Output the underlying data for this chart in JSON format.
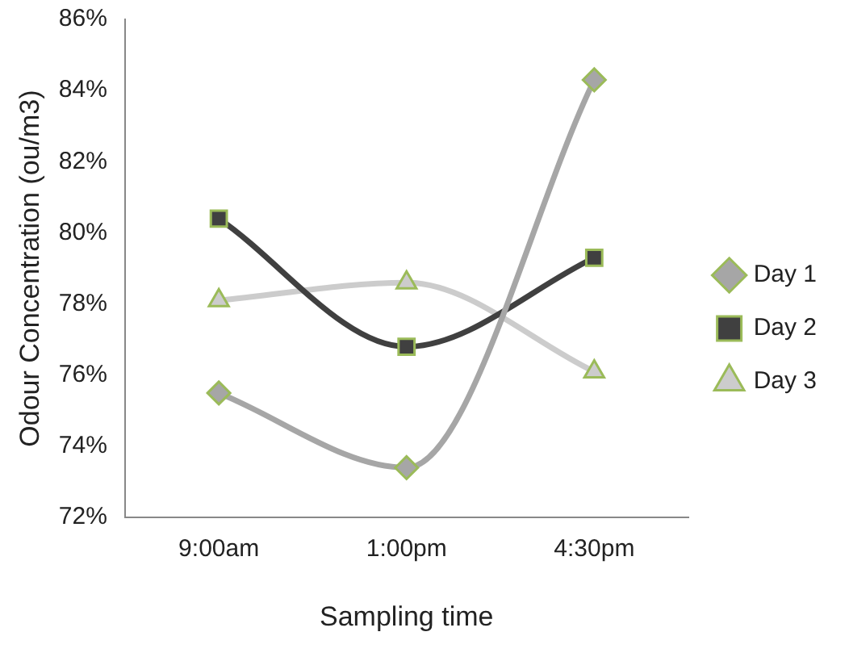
{
  "chart_data": {
    "type": "line",
    "xlabel": "Sampling time",
    "ylabel": "Odour Concentration (ou/m3)",
    "categories": [
      "9:00am",
      "1:00pm",
      "4:30pm"
    ],
    "series": [
      {
        "name": "Day 1",
        "color": "#a6a6a6",
        "marker": "diamond",
        "values": [
          75.5,
          73.4,
          84.3
        ]
      },
      {
        "name": "Day 2",
        "color": "#404040",
        "marker": "square",
        "values": [
          80.4,
          76.8,
          79.3
        ]
      },
      {
        "name": "Day 3",
        "color": "#cccccc",
        "marker": "triangle",
        "values": [
          78.1,
          78.6,
          76.1
        ]
      }
    ],
    "ylim": [
      72,
      86
    ],
    "yticks": [
      {
        "value": 72,
        "label": "72%"
      },
      {
        "value": 74,
        "label": "74%"
      },
      {
        "value": 76,
        "label": "76%"
      },
      {
        "value": 78,
        "label": "78%"
      },
      {
        "value": 80,
        "label": "80%"
      },
      {
        "value": 82,
        "label": "82%"
      },
      {
        "value": 84,
        "label": "84%"
      },
      {
        "value": 86,
        "label": "86%"
      }
    ],
    "grid": false,
    "legend": "right"
  }
}
